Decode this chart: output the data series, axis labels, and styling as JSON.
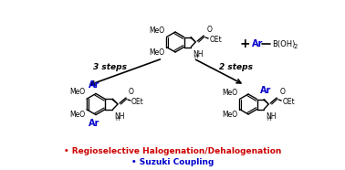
{
  "background_color": "#ffffff",
  "bullet1_text": "Regioselective Halogenation/Dehalogenation",
  "bullet1_color": "#cc0000",
  "bullet2_text": "Suzuki Coupling",
  "bullet2_color": "#0000cc",
  "label_3steps": "3 steps",
  "label_2steps": "2 steps",
  "ar_color": "#0000cc",
  "bond_color": "#000000"
}
